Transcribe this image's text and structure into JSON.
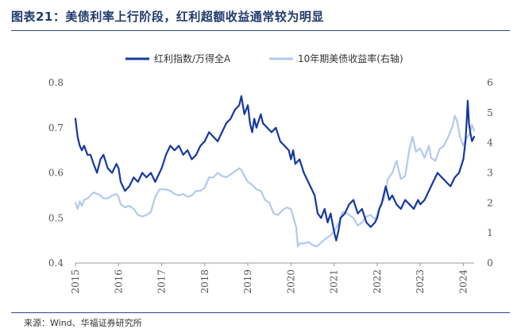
{
  "figure": {
    "title": "图表21：美债利率上行阶段，红利超额收益通常较为明显",
    "source": "来源：Wind、华福证券研究所"
  },
  "chart_data": {
    "type": "line",
    "title": "",
    "x_ticks": [
      "2015",
      "2016",
      "2017",
      "2018",
      "2019",
      "2020",
      "2021",
      "2022",
      "2023",
      "2024"
    ],
    "x_range": [
      2015.0,
      2024.25
    ],
    "left_axis": {
      "range": [
        0.4,
        0.8
      ],
      "ticks": [
        "0.4",
        "0.5",
        "0.6",
        "0.7",
        "0.8"
      ]
    },
    "right_axis": {
      "range": [
        0,
        6
      ],
      "ticks": [
        "0",
        "1",
        "2",
        "3",
        "4",
        "5",
        "6"
      ]
    },
    "legend_position": "top-center",
    "grid": false,
    "series": [
      {
        "name": "红利指数/万得全A",
        "axis": "left",
        "color": "#1538a0",
        "points": [
          [
            2015.0,
            0.72
          ],
          [
            2015.05,
            0.68
          ],
          [
            2015.1,
            0.66
          ],
          [
            2015.15,
            0.65
          ],
          [
            2015.2,
            0.66
          ],
          [
            2015.28,
            0.64
          ],
          [
            2015.35,
            0.64
          ],
          [
            2015.42,
            0.62
          ],
          [
            2015.5,
            0.6
          ],
          [
            2015.58,
            0.63
          ],
          [
            2015.65,
            0.64
          ],
          [
            2015.75,
            0.61
          ],
          [
            2015.85,
            0.6
          ],
          [
            2015.95,
            0.62
          ],
          [
            2016.0,
            0.61
          ],
          [
            2016.05,
            0.58
          ],
          [
            2016.15,
            0.56
          ],
          [
            2016.25,
            0.57
          ],
          [
            2016.35,
            0.59
          ],
          [
            2016.45,
            0.58
          ],
          [
            2016.55,
            0.6
          ],
          [
            2016.65,
            0.59
          ],
          [
            2016.75,
            0.6
          ],
          [
            2016.85,
            0.58
          ],
          [
            2016.95,
            0.6
          ],
          [
            2017.0,
            0.61
          ],
          [
            2017.1,
            0.64
          ],
          [
            2017.2,
            0.66
          ],
          [
            2017.3,
            0.65
          ],
          [
            2017.4,
            0.66
          ],
          [
            2017.5,
            0.64
          ],
          [
            2017.6,
            0.65
          ],
          [
            2017.7,
            0.63
          ],
          [
            2017.8,
            0.64
          ],
          [
            2017.9,
            0.66
          ],
          [
            2018.0,
            0.67
          ],
          [
            2018.1,
            0.69
          ],
          [
            2018.2,
            0.68
          ],
          [
            2018.3,
            0.67
          ],
          [
            2018.4,
            0.69
          ],
          [
            2018.5,
            0.71
          ],
          [
            2018.6,
            0.72
          ],
          [
            2018.7,
            0.74
          ],
          [
            2018.8,
            0.75
          ],
          [
            2018.85,
            0.77
          ],
          [
            2018.92,
            0.73
          ],
          [
            2019.0,
            0.75
          ],
          [
            2019.05,
            0.71
          ],
          [
            2019.1,
            0.69
          ],
          [
            2019.15,
            0.72
          ],
          [
            2019.2,
            0.7
          ],
          [
            2019.3,
            0.73
          ],
          [
            2019.35,
            0.71
          ],
          [
            2019.45,
            0.7
          ],
          [
            2019.55,
            0.69
          ],
          [
            2019.65,
            0.7
          ],
          [
            2019.75,
            0.67
          ],
          [
            2019.85,
            0.66
          ],
          [
            2019.95,
            0.65
          ],
          [
            2020.0,
            0.63
          ],
          [
            2020.05,
            0.65
          ],
          [
            2020.1,
            0.62
          ],
          [
            2020.2,
            0.63
          ],
          [
            2020.3,
            0.6
          ],
          [
            2020.4,
            0.58
          ],
          [
            2020.45,
            0.57
          ],
          [
            2020.55,
            0.55
          ],
          [
            2020.62,
            0.51
          ],
          [
            2020.7,
            0.5
          ],
          [
            2020.78,
            0.52
          ],
          [
            2020.85,
            0.49
          ],
          [
            2020.92,
            0.51
          ],
          [
            2021.0,
            0.47
          ],
          [
            2021.05,
            0.45
          ],
          [
            2021.1,
            0.47
          ],
          [
            2021.15,
            0.5
          ],
          [
            2021.25,
            0.51
          ],
          [
            2021.35,
            0.53
          ],
          [
            2021.45,
            0.54
          ],
          [
            2021.55,
            0.51
          ],
          [
            2021.65,
            0.52
          ],
          [
            2021.75,
            0.49
          ],
          [
            2021.85,
            0.48
          ],
          [
            2021.95,
            0.49
          ],
          [
            2022.0,
            0.5
          ],
          [
            2022.05,
            0.52
          ],
          [
            2022.1,
            0.53
          ],
          [
            2022.15,
            0.55
          ],
          [
            2022.2,
            0.57
          ],
          [
            2022.28,
            0.54
          ],
          [
            2022.35,
            0.55
          ],
          [
            2022.45,
            0.53
          ],
          [
            2022.55,
            0.52
          ],
          [
            2022.65,
            0.54
          ],
          [
            2022.75,
            0.53
          ],
          [
            2022.85,
            0.52
          ],
          [
            2022.95,
            0.54
          ],
          [
            2023.0,
            0.53
          ],
          [
            2023.1,
            0.54
          ],
          [
            2023.2,
            0.56
          ],
          [
            2023.3,
            0.58
          ],
          [
            2023.4,
            0.6
          ],
          [
            2023.5,
            0.59
          ],
          [
            2023.6,
            0.58
          ],
          [
            2023.7,
            0.57
          ],
          [
            2023.8,
            0.59
          ],
          [
            2023.9,
            0.6
          ],
          [
            2024.0,
            0.63
          ],
          [
            2024.05,
            0.67
          ],
          [
            2024.08,
            0.72
          ],
          [
            2024.1,
            0.76
          ],
          [
            2024.13,
            0.71
          ],
          [
            2024.16,
            0.69
          ],
          [
            2024.2,
            0.67
          ],
          [
            2024.25,
            0.68
          ]
        ]
      },
      {
        "name": "10年期美债收益率(右轴)",
        "axis": "right",
        "color": "#b3c9ee",
        "points": [
          [
            2015.0,
            2.0
          ],
          [
            2015.05,
            1.8
          ],
          [
            2015.1,
            2.05
          ],
          [
            2015.15,
            1.9
          ],
          [
            2015.2,
            2.1
          ],
          [
            2015.28,
            2.15
          ],
          [
            2015.35,
            2.25
          ],
          [
            2015.42,
            2.35
          ],
          [
            2015.5,
            2.3
          ],
          [
            2015.58,
            2.25
          ],
          [
            2015.65,
            2.15
          ],
          [
            2015.75,
            2.15
          ],
          [
            2015.85,
            2.25
          ],
          [
            2015.95,
            2.3
          ],
          [
            2016.0,
            2.2
          ],
          [
            2016.05,
            1.95
          ],
          [
            2016.15,
            1.85
          ],
          [
            2016.25,
            1.9
          ],
          [
            2016.35,
            1.8
          ],
          [
            2016.45,
            1.6
          ],
          [
            2016.55,
            1.55
          ],
          [
            2016.65,
            1.6
          ],
          [
            2016.75,
            1.7
          ],
          [
            2016.85,
            2.2
          ],
          [
            2016.95,
            2.45
          ],
          [
            2017.0,
            2.45
          ],
          [
            2017.1,
            2.45
          ],
          [
            2017.2,
            2.4
          ],
          [
            2017.3,
            2.3
          ],
          [
            2017.4,
            2.25
          ],
          [
            2017.5,
            2.3
          ],
          [
            2017.6,
            2.2
          ],
          [
            2017.7,
            2.25
          ],
          [
            2017.8,
            2.4
          ],
          [
            2017.9,
            2.4
          ],
          [
            2018.0,
            2.5
          ],
          [
            2018.1,
            2.85
          ],
          [
            2018.2,
            2.85
          ],
          [
            2018.3,
            3.0
          ],
          [
            2018.4,
            2.9
          ],
          [
            2018.5,
            2.85
          ],
          [
            2018.6,
            2.95
          ],
          [
            2018.7,
            3.05
          ],
          [
            2018.8,
            3.15
          ],
          [
            2018.85,
            3.1
          ],
          [
            2018.92,
            2.9
          ],
          [
            2019.0,
            2.7
          ],
          [
            2019.05,
            2.65
          ],
          [
            2019.1,
            2.6
          ],
          [
            2019.2,
            2.45
          ],
          [
            2019.3,
            2.4
          ],
          [
            2019.4,
            2.1
          ],
          [
            2019.5,
            2.0
          ],
          [
            2019.6,
            1.65
          ],
          [
            2019.7,
            1.6
          ],
          [
            2019.8,
            1.75
          ],
          [
            2019.9,
            1.85
          ],
          [
            2020.0,
            1.8
          ],
          [
            2020.05,
            1.55
          ],
          [
            2020.12,
            1.2
          ],
          [
            2020.16,
            0.55
          ],
          [
            2020.2,
            0.65
          ],
          [
            2020.3,
            0.65
          ],
          [
            2020.4,
            0.7
          ],
          [
            2020.5,
            0.6
          ],
          [
            2020.6,
            0.55
          ],
          [
            2020.7,
            0.68
          ],
          [
            2020.8,
            0.8
          ],
          [
            2020.9,
            0.9
          ],
          [
            2021.0,
            1.05
          ],
          [
            2021.1,
            1.3
          ],
          [
            2021.2,
            1.7
          ],
          [
            2021.25,
            1.7
          ],
          [
            2021.35,
            1.6
          ],
          [
            2021.45,
            1.5
          ],
          [
            2021.55,
            1.25
          ],
          [
            2021.65,
            1.35
          ],
          [
            2021.75,
            1.55
          ],
          [
            2021.85,
            1.6
          ],
          [
            2021.95,
            1.45
          ],
          [
            2022.0,
            1.6
          ],
          [
            2022.08,
            1.95
          ],
          [
            2022.15,
            2.1
          ],
          [
            2022.25,
            2.8
          ],
          [
            2022.35,
            3.0
          ],
          [
            2022.45,
            3.4
          ],
          [
            2022.55,
            2.8
          ],
          [
            2022.65,
            2.9
          ],
          [
            2022.75,
            3.8
          ],
          [
            2022.82,
            4.2
          ],
          [
            2022.9,
            3.7
          ],
          [
            2022.97,
            3.8
          ],
          [
            2023.0,
            3.8
          ],
          [
            2023.1,
            3.5
          ],
          [
            2023.2,
            3.9
          ],
          [
            2023.25,
            3.5
          ],
          [
            2023.35,
            3.4
          ],
          [
            2023.45,
            3.8
          ],
          [
            2023.55,
            3.9
          ],
          [
            2023.65,
            4.2
          ],
          [
            2023.75,
            4.55
          ],
          [
            2023.8,
            4.9
          ],
          [
            2023.86,
            4.7
          ],
          [
            2023.92,
            4.2
          ],
          [
            2024.0,
            3.9
          ],
          [
            2024.05,
            4.1
          ],
          [
            2024.1,
            4.2
          ],
          [
            2024.15,
            4.3
          ],
          [
            2024.2,
            4.6
          ],
          [
            2024.25,
            4.4
          ]
        ]
      }
    ]
  }
}
